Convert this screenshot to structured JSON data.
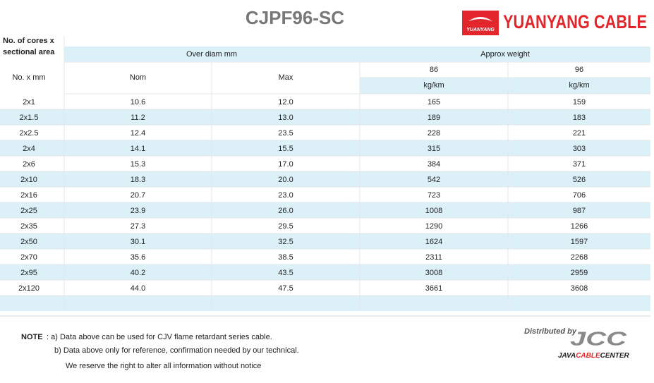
{
  "header": {
    "title": "CJPF96-SC",
    "logo": {
      "badge": "YUANYANG",
      "name": "YUANYANG CABLE"
    }
  },
  "table": {
    "corner": [
      "No. of cores x",
      "sectional area"
    ],
    "group_headers": [
      "Over diam mm",
      "Approx weight"
    ],
    "column_headers": [
      "No. x mm",
      "Nom",
      "Max"
    ],
    "weight_types": [
      "86",
      "96"
    ],
    "weight_unit": "kg/km",
    "rows": [
      [
        "2x1",
        "10.6",
        "12.0",
        "165",
        "159"
      ],
      [
        "2x1.5",
        "11.2",
        "13.0",
        "189",
        "183"
      ],
      [
        "2x2.5",
        "12.4",
        "23.5",
        "228",
        "221"
      ],
      [
        "2x4",
        "14.1",
        "15.5",
        "315",
        "303"
      ],
      [
        "2x6",
        "15.3",
        "17.0",
        "384",
        "371"
      ],
      [
        "2x10",
        "18.3",
        "20.0",
        "542",
        "526"
      ],
      [
        "2x16",
        "20.7",
        "23.0",
        "723",
        "706"
      ],
      [
        "2x25",
        "23.9",
        "26.0",
        "1008",
        "987"
      ],
      [
        "2x35",
        "27.3",
        "29.5",
        "1290",
        "1266"
      ],
      [
        "2x50",
        "30.1",
        "32.5",
        "1624",
        "1597"
      ],
      [
        "2x70",
        "35.6",
        "38.5",
        "2311",
        "2268"
      ],
      [
        "2x95",
        "40.2",
        "43.5",
        "3008",
        "2959"
      ],
      [
        "2x120",
        "44.0",
        "47.5",
        "3661",
        "3608"
      ]
    ]
  },
  "notes": {
    "label": "NOTE",
    "items": [
      ": a) Data above can be used for CJV flame retardant series cable.",
      "b) Data above only for reference, confirmation needed by our technical.",
      "We reserve the right to alter all information without notice"
    ]
  },
  "distributor": {
    "prefix": "Distributed by",
    "logo": "JCC",
    "name": [
      "JAVA",
      "CABLE",
      "CENTER"
    ]
  }
}
